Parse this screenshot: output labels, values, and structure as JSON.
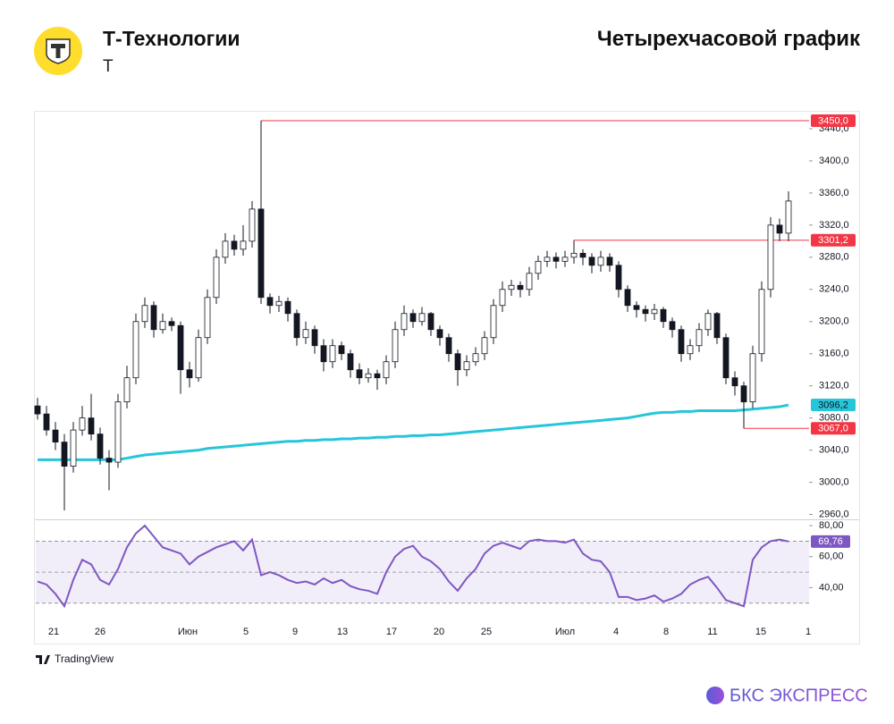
{
  "header": {
    "title": "Т-Технологии",
    "ticker": "Т",
    "chart_label": "Четырехчасовой график"
  },
  "chart_data": {
    "type": "candlestick",
    "xticks": [
      {
        "value": 1.8,
        "label": "21"
      },
      {
        "value": 7,
        "label": "26"
      },
      {
        "value": 16.8,
        "label": "Июн"
      },
      {
        "value": 23.3,
        "label": "5"
      },
      {
        "value": 28.8,
        "label": "9"
      },
      {
        "value": 34.1,
        "label": "13"
      },
      {
        "value": 39.6,
        "label": "17"
      },
      {
        "value": 44.9,
        "label": "20"
      },
      {
        "value": 50.2,
        "label": "25"
      },
      {
        "value": 59,
        "label": "Июл"
      },
      {
        "value": 64.7,
        "label": "4"
      },
      {
        "value": 70.3,
        "label": "8"
      },
      {
        "value": 75.5,
        "label": "11"
      },
      {
        "value": 80.9,
        "label": "15"
      },
      {
        "value": 86.2,
        "label": "1"
      }
    ],
    "xlim": [
      -0.2,
      86.3
    ],
    "ylim": [
      2955,
      3460
    ],
    "yticks": [
      {
        "value": 2960,
        "label": "2960,0"
      },
      {
        "value": 3000,
        "label": "3000,0"
      },
      {
        "value": 3040,
        "label": "3040,0"
      },
      {
        "value": 3080,
        "label": "3080,0"
      },
      {
        "value": 3120,
        "label": "3120,0"
      },
      {
        "value": 3160,
        "label": "3160,0"
      },
      {
        "value": 3200,
        "label": "3200,0"
      },
      {
        "value": 3240,
        "label": "3240,0"
      },
      {
        "value": 3280,
        "label": "3280,0"
      },
      {
        "value": 3320,
        "label": "3320,0"
      },
      {
        "value": 3360,
        "label": "3360,0"
      },
      {
        "value": 3400,
        "label": "3400,0"
      },
      {
        "value": 3440,
        "label": "3440,0"
      }
    ],
    "open": [
      3095,
      3085,
      3065,
      3050,
      3020,
      3065,
      3080,
      3060,
      3030,
      3025,
      3100,
      3130,
      3200,
      3220,
      3190,
      3200,
      3195,
      3140,
      3130,
      3180,
      3230,
      3280,
      3300,
      3290,
      3300,
      3340,
      3230,
      3220,
      3225,
      3210,
      3180,
      3190,
      3170,
      3150,
      3170,
      3160,
      3140,
      3130,
      3135,
      3130,
      3150,
      3190,
      3210,
      3200,
      3210,
      3190,
      3180,
      3160,
      3140,
      3150,
      3160,
      3180,
      3220,
      3240,
      3245,
      3240,
      3260,
      3275,
      3280,
      3275,
      3280,
      3285,
      3280,
      3270,
      3280,
      3270,
      3240,
      3220,
      3215,
      3210,
      3215,
      3200,
      3190,
      3160,
      3170,
      3190,
      3210,
      3180,
      3130,
      3120,
      3100,
      3160,
      3240,
      3320,
      3310
    ],
    "high": [
      3105,
      3095,
      3075,
      3060,
      3075,
      3095,
      3110,
      3068,
      3040,
      3110,
      3145,
      3210,
      3230,
      3225,
      3210,
      3205,
      3200,
      3150,
      3190,
      3240,
      3290,
      3310,
      3308,
      3320,
      3350,
      3450,
      3235,
      3232,
      3230,
      3215,
      3200,
      3195,
      3178,
      3178,
      3175,
      3165,
      3148,
      3142,
      3140,
      3158,
      3200,
      3220,
      3215,
      3218,
      3212,
      3195,
      3185,
      3165,
      3158,
      3168,
      3188,
      3228,
      3250,
      3252,
      3250,
      3268,
      3282,
      3288,
      3286,
      3288,
      3301.2,
      3290,
      3285,
      3288,
      3285,
      3275,
      3245,
      3225,
      3220,
      3222,
      3218,
      3205,
      3195,
      3178,
      3198,
      3215,
      3212,
      3185,
      3138,
      3125,
      3170,
      3250,
      3330,
      3328,
      3362
    ],
    "low": [
      3078,
      3058,
      3040,
      2965,
      3012,
      3058,
      3052,
      3022,
      2990,
      3018,
      3092,
      3122,
      3192,
      3180,
      3185,
      3188,
      3110,
      3118,
      3125,
      3172,
      3222,
      3272,
      3282,
      3282,
      3292,
      3222,
      3210,
      3212,
      3200,
      3170,
      3172,
      3160,
      3138,
      3142,
      3152,
      3130,
      3122,
      3124,
      3115,
      3122,
      3142,
      3182,
      3192,
      3195,
      3182,
      3170,
      3150,
      3120,
      3132,
      3145,
      3152,
      3172,
      3212,
      3232,
      3230,
      3232,
      3252,
      3268,
      3266,
      3268,
      3272,
      3270,
      3260,
      3262,
      3262,
      3230,
      3212,
      3205,
      3200,
      3202,
      3192,
      3180,
      3150,
      3152,
      3162,
      3182,
      3172,
      3122,
      3108,
      3067,
      3092,
      3150,
      3230,
      3300,
      3300
    ],
    "close": [
      3085,
      3065,
      3050,
      3020,
      3065,
      3080,
      3060,
      3030,
      3025,
      3100,
      3130,
      3200,
      3220,
      3190,
      3200,
      3195,
      3140,
      3130,
      3180,
      3230,
      3280,
      3300,
      3290,
      3300,
      3340,
      3230,
      3220,
      3225,
      3210,
      3180,
      3190,
      3170,
      3150,
      3170,
      3160,
      3140,
      3130,
      3135,
      3130,
      3150,
      3190,
      3210,
      3200,
      3210,
      3190,
      3180,
      3160,
      3140,
      3150,
      3160,
      3180,
      3220,
      3240,
      3245,
      3240,
      3260,
      3275,
      3280,
      3275,
      3280,
      3285,
      3280,
      3270,
      3280,
      3270,
      3240,
      3220,
      3215,
      3210,
      3215,
      3200,
      3190,
      3160,
      3170,
      3190,
      3210,
      3180,
      3130,
      3120,
      3100,
      3160,
      3240,
      3320,
      3310,
      3350
    ],
    "levels": [
      {
        "value": 3450,
        "label": "3450,0",
        "color": "#f23645"
      },
      {
        "value": 3301.2,
        "label": "3301,2",
        "color": "#f23645"
      },
      {
        "value": 3067,
        "label": "3067,0",
        "color": "#f23645"
      }
    ],
    "ma": {
      "color": "#26c6da",
      "label": "3096,2",
      "values": [
        3028,
        3028,
        3028,
        3028,
        3028,
        3028,
        3028,
        3028,
        3028,
        3028,
        3030,
        3032,
        3034,
        3035,
        3036,
        3037,
        3038,
        3039,
        3040,
        3042,
        3043,
        3044,
        3045,
        3046,
        3047,
        3048,
        3049,
        3050,
        3051,
        3051,
        3052,
        3052,
        3053,
        3053,
        3054,
        3054,
        3055,
        3055,
        3056,
        3056,
        3057,
        3057,
        3058,
        3058,
        3059,
        3059,
        3060,
        3061,
        3062,
        3063,
        3064,
        3065,
        3066,
        3067,
        3068,
        3069,
        3070,
        3071,
        3072,
        3073,
        3074,
        3075,
        3076,
        3077,
        3078,
        3079,
        3080,
        3082,
        3084,
        3086,
        3087,
        3087,
        3088,
        3088,
        3089,
        3089,
        3089,
        3089,
        3089,
        3090,
        3091,
        3092,
        3093,
        3094,
        3096.2
      ]
    },
    "rsi": {
      "color": "#7e57c2",
      "label": "69,76",
      "ylim": [
        27,
        83.5
      ],
      "yticks": [
        {
          "value": 40,
          "label": "40,00"
        },
        {
          "value": 60,
          "label": "60,00"
        },
        {
          "value": 80,
          "label": "80,00"
        }
      ],
      "bands": [
        70,
        50,
        30
      ],
      "values": [
        44,
        42,
        36,
        28,
        45,
        58,
        55,
        45,
        42,
        52,
        66,
        75,
        80,
        73,
        66,
        64,
        62,
        55,
        60,
        63,
        66,
        68,
        70,
        64,
        71,
        48,
        50,
        48,
        45,
        43,
        44,
        42,
        46,
        43,
        45,
        41,
        39,
        38,
        36,
        50,
        60,
        65,
        67,
        60,
        57,
        52,
        44,
        38,
        46,
        52,
        62,
        67,
        69,
        67,
        65,
        70,
        71,
        70,
        70,
        69,
        71,
        62,
        58,
        57,
        50,
        34,
        34,
        32,
        33,
        35,
        31,
        33,
        36,
        42,
        45,
        47,
        40,
        32,
        30,
        28,
        58,
        66,
        70,
        71,
        69.76
      ]
    }
  },
  "footer": {
    "source": "TradingView",
    "brand": "БКС ЭКСПРЕСС"
  }
}
